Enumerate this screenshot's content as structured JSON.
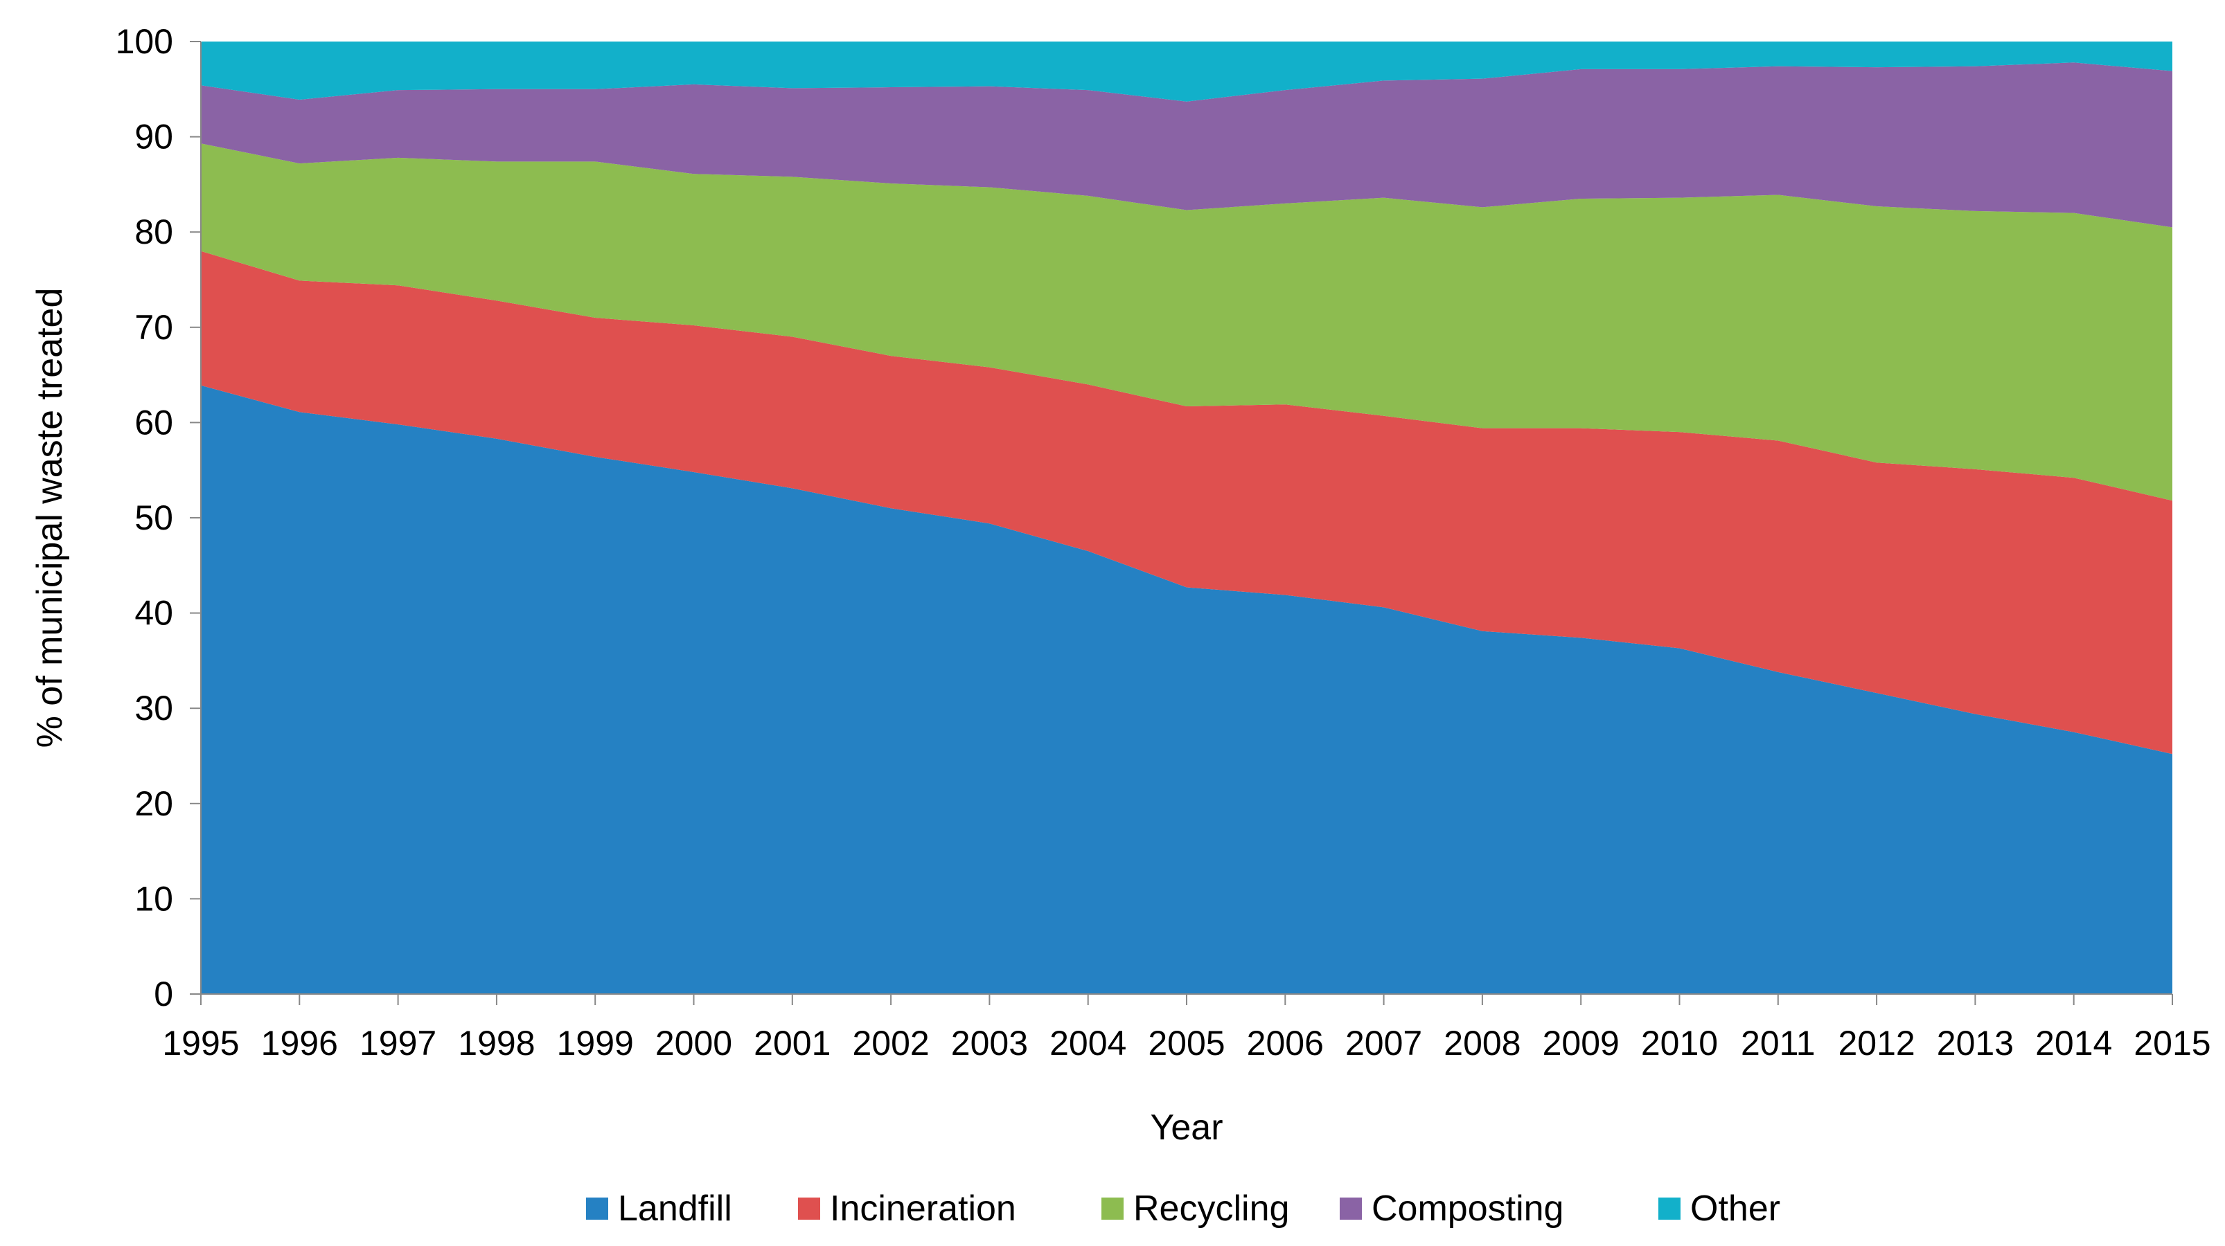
{
  "chart_data": {
    "type": "area",
    "stacked": true,
    "title": "",
    "xlabel": "Year",
    "ylabel": "% of municipal waste treated",
    "ylim": [
      0,
      100
    ],
    "yticks": [
      "0",
      "10",
      "20",
      "30",
      "40",
      "50",
      "60",
      "70",
      "80",
      "90",
      "100"
    ],
    "ytick_values": [
      0,
      10,
      20,
      30,
      40,
      50,
      60,
      70,
      80,
      90,
      100
    ],
    "grid": false,
    "legend_position": "bottom",
    "categories": [
      "1995",
      "1996",
      "1997",
      "1998",
      "1999",
      "2000",
      "2001",
      "2002",
      "2003",
      "2004",
      "2005",
      "2006",
      "2007",
      "2008",
      "2009",
      "2010",
      "2011",
      "2012",
      "2013",
      "2014",
      "2015"
    ],
    "series": [
      {
        "name": "Landfill",
        "color": "#2581C3",
        "values": [
          63.9,
          61.1,
          59.8,
          58.3,
          56.4,
          54.8,
          53.1,
          51.0,
          49.4,
          46.5,
          42.7,
          41.9,
          40.6,
          38.1,
          37.4,
          36.3,
          33.8,
          31.6,
          29.4,
          27.5,
          25.2
        ]
      },
      {
        "name": "Incineration",
        "color": "#DF504F",
        "values": [
          14.1,
          13.8,
          14.6,
          14.5,
          14.6,
          15.4,
          15.9,
          16.0,
          16.4,
          17.5,
          19.0,
          20.0,
          20.1,
          21.3,
          22.0,
          22.7,
          24.3,
          24.2,
          25.7,
          26.7,
          26.6
        ]
      },
      {
        "name": "Recycling",
        "color": "#8DBC50",
        "values": [
          11.3,
          12.3,
          13.4,
          14.6,
          16.4,
          15.9,
          16.8,
          18.1,
          18.9,
          19.8,
          20.6,
          21.1,
          22.9,
          23.2,
          24.1,
          24.6,
          25.8,
          26.9,
          27.1,
          27.8,
          28.7
        ]
      },
      {
        "name": "Composting",
        "color": "#8A63A5",
        "values": [
          6.1,
          6.7,
          7.1,
          7.6,
          7.6,
          9.4,
          9.3,
          10.1,
          10.6,
          11.1,
          11.4,
          11.9,
          12.3,
          13.5,
          13.6,
          13.5,
          13.5,
          14.6,
          15.2,
          15.8,
          16.4
        ]
      },
      {
        "name": "Other",
        "color": "#12B0CA",
        "values": [
          4.6,
          6.1,
          5.1,
          5.0,
          5.0,
          4.5,
          4.9,
          4.8,
          4.7,
          5.1,
          6.3,
          5.1,
          4.1,
          3.9,
          2.9,
          2.9,
          2.6,
          2.7,
          2.6,
          2.2,
          3.1
        ]
      }
    ]
  }
}
